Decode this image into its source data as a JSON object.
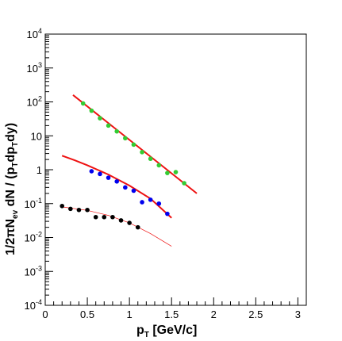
{
  "chart_data": {
    "type": "scatter",
    "title": "",
    "xlabel": "p_T [GeV/c]",
    "ylabel": "1/2πN_ev dN / (p_T dp_T dy)",
    "xlim": [
      0,
      3.1
    ],
    "ylim_log10": [
      -4,
      4
    ],
    "log_y": true,
    "grid": false,
    "x_ticks": [
      {
        "value": 0,
        "label": "0"
      },
      {
        "value": 0.5,
        "label": "0.5"
      },
      {
        "value": 1,
        "label": "1"
      },
      {
        "value": 1.5,
        "label": "1.5"
      },
      {
        "value": 2,
        "label": "2"
      },
      {
        "value": 2.5,
        "label": "2.5"
      },
      {
        "value": 3,
        "label": "3"
      }
    ],
    "y_ticks": [
      {
        "exp": -4,
        "base": "10",
        "sup": "-4"
      },
      {
        "exp": -3,
        "base": "10",
        "sup": "-3"
      },
      {
        "exp": -2,
        "base": "10",
        "sup": "-2"
      },
      {
        "exp": -1,
        "base": "10",
        "sup": "-1"
      },
      {
        "exp": 0,
        "base": "1",
        "sup": ""
      },
      {
        "exp": 1,
        "base": "10",
        "sup": ""
      },
      {
        "exp": 2,
        "base": "10",
        "sup": "2"
      },
      {
        "exp": 3,
        "base": "10",
        "sup": "3"
      },
      {
        "exp": 4,
        "base": "10",
        "sup": "4"
      }
    ],
    "series": [
      {
        "color": "#33cc33",
        "marker": "circle",
        "x": [
          0.45,
          0.55,
          0.65,
          0.75,
          0.85,
          0.95,
          1.05,
          1.15,
          1.25,
          1.35,
          1.45,
          1.55,
          1.65
        ],
        "y": [
          90,
          55,
          33,
          20,
          13.5,
          8.5,
          5.5,
          3.3,
          2.1,
          1.35,
          0.8,
          0.85,
          0.4
        ]
      },
      {
        "color": "#0000ee",
        "marker": "circle",
        "x": [
          0.55,
          0.65,
          0.75,
          0.85,
          0.95,
          1.05,
          1.15,
          1.25,
          1.35,
          1.45
        ],
        "y": [
          0.9,
          0.75,
          0.58,
          0.45,
          0.3,
          0.24,
          0.11,
          0.13,
          0.1,
          0.05
        ]
      },
      {
        "color": "#000000",
        "marker": "circle",
        "x": [
          0.2,
          0.3,
          0.4,
          0.5,
          0.6,
          0.7,
          0.8,
          0.9,
          1.0,
          1.1
        ],
        "y": [
          0.085,
          0.07,
          0.065,
          0.065,
          0.04,
          0.04,
          0.04,
          0.032,
          0.027,
          0.02
        ]
      }
    ],
    "fits": [
      {
        "color": "#ee1111",
        "width": 2,
        "x": [
          0.33,
          1.8
        ],
        "y": [
          160,
          0.2
        ]
      },
      {
        "color": "#ee1111",
        "width": 2,
        "x": [
          0.2,
          0.35,
          0.5,
          0.75,
          1.0,
          1.25,
          1.5
        ],
        "y": [
          2.6,
          1.9,
          1.35,
          0.72,
          0.34,
          0.14,
          0.038
        ]
      },
      {
        "color": "#ee1111",
        "width": 0.7,
        "x": [
          0.2,
          0.5,
          0.75,
          1.0,
          1.25,
          1.5
        ],
        "y": [
          0.08,
          0.063,
          0.045,
          0.027,
          0.013,
          0.0055
        ]
      }
    ]
  }
}
